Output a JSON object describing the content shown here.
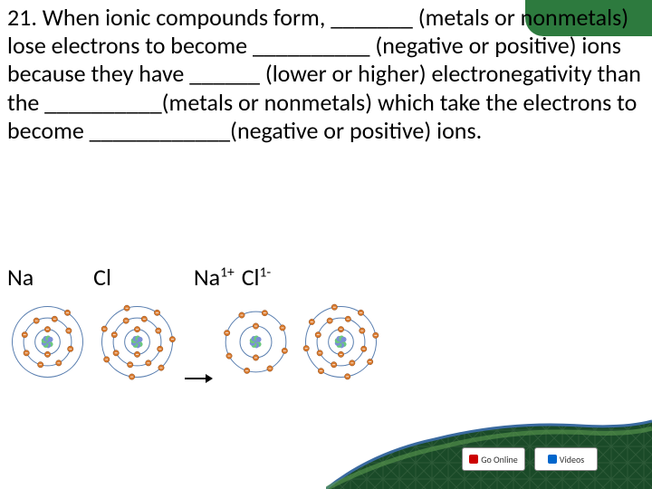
{
  "question": {
    "text": "21.  When ionic compounds form, _______ (metals or nonmetals) lose electrons to become __________ (negative or positive) ions because they have ______ (lower or higher) electronegativity than the __________(metals or nonmetals) which take the electrons to become ____________(negative or positive) ions.",
    "fontsize": 26,
    "color": "#000000"
  },
  "labels": {
    "na": "Na",
    "cl": "Cl",
    "na_ion": "Na",
    "na_sup": "1+",
    "cl_ion": "Cl",
    "cl_sup": "1-"
  },
  "atoms": {
    "na": {
      "shells": [
        2,
        8,
        1
      ],
      "nucleus_colors": [
        "#7b8fd6",
        "#6bc97e"
      ],
      "electron_color": "#d97a2e",
      "ring_color": "#5a7fb0"
    },
    "cl": {
      "shells": [
        2,
        8,
        7
      ],
      "nucleus_colors": [
        "#7b8fd6",
        "#6bc97e"
      ],
      "electron_color": "#d97a2e",
      "ring_color": "#5a7fb0"
    },
    "na_ion": {
      "shells": [
        2,
        8
      ],
      "nucleus_colors": [
        "#7b8fd6",
        "#6bc97e"
      ],
      "electron_color": "#d97a2e",
      "ring_color": "#5a7fb0"
    },
    "cl_ion": {
      "shells": [
        2,
        8,
        8
      ],
      "nucleus_colors": [
        "#7b8fd6",
        "#6bc97e"
      ],
      "electron_color": "#d97a2e",
      "ring_color": "#5a7fb0"
    }
  },
  "buttons": {
    "go_online": "Go Online",
    "videos": "Videos"
  },
  "decor": {
    "corner_color": "#2d7a3e",
    "hill_dark": "#1a4a28",
    "hill_light": "#5a9a4e",
    "hill_border": "#3a6aa0",
    "hill_pattern": "#4a7a3a"
  }
}
